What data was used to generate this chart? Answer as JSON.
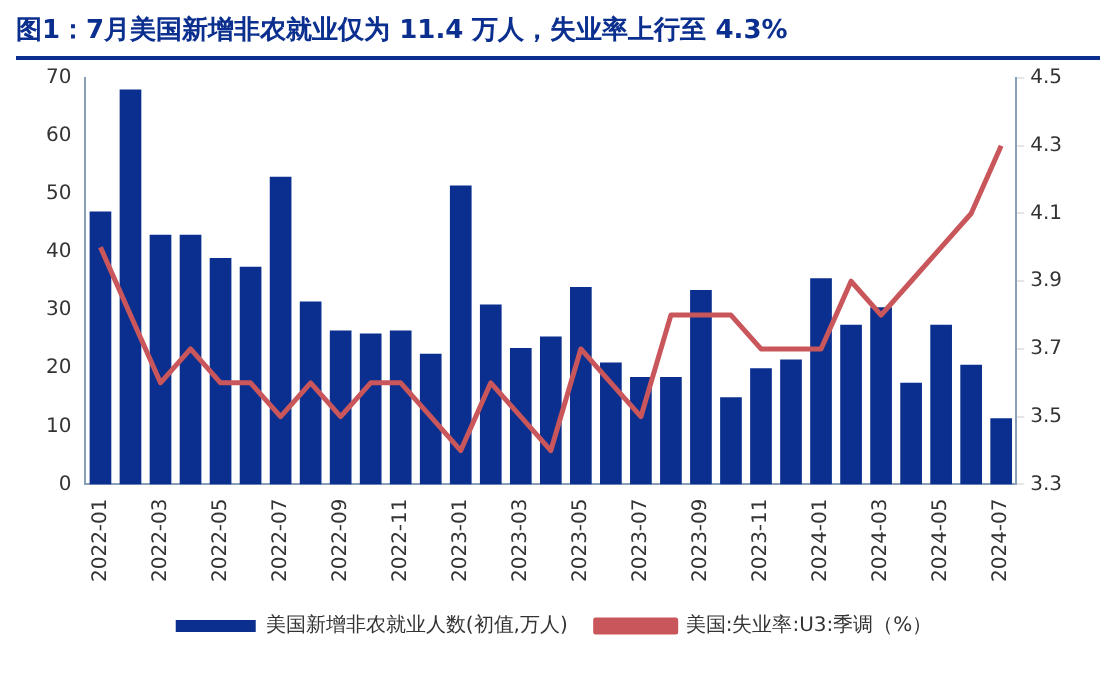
{
  "chart_data": {
    "type": "bar",
    "title": "图1：7月美国新增非农就业仅为 11.4 万人，失业率上行至 4.3%",
    "categories": [
      "2022-01",
      null,
      "2022-03",
      null,
      "2022-05",
      null,
      "2022-07",
      null,
      "2022-09",
      null,
      "2022-11",
      null,
      "2023-01",
      null,
      "2023-03",
      null,
      "2023-05",
      null,
      "2023-07",
      null,
      "2023-09",
      null,
      "2023-11",
      null,
      "2024-01",
      null,
      "2024-03",
      null,
      "2024-05",
      null,
      "2024-07"
    ],
    "series": [
      {
        "name": "美国新增非农就业人数(初值,万人)",
        "color": "#0b2f8f",
        "values": [
          47,
          68,
          43,
          43,
          39,
          37.5,
          53,
          31.5,
          26.5,
          26,
          26.5,
          22.5,
          51.5,
          31,
          23.5,
          25.5,
          34,
          21,
          18.5,
          18.5,
          33.5,
          15,
          20,
          21.5,
          35.5,
          27.5,
          30.5,
          17.5,
          27.5,
          20.6,
          11.4
        ]
      },
      {
        "name": "美国:失业率:U3:季调（%）",
        "type": "line",
        "axis": "y2",
        "color": "#c9565b",
        "values": [
          4.0,
          3.8,
          3.6,
          3.7,
          3.6,
          3.6,
          3.5,
          3.6,
          3.5,
          3.6,
          3.6,
          3.5,
          3.4,
          3.6,
          3.5,
          3.4,
          3.7,
          3.6,
          3.5,
          3.8,
          3.8,
          3.8,
          3.7,
          3.7,
          3.7,
          3.9,
          3.8,
          3.9,
          4.0,
          4.1,
          4.3
        ]
      }
    ],
    "ylim": [
      0,
      70
    ],
    "yticks": [
      0,
      10,
      20,
      30,
      40,
      50,
      60,
      70
    ],
    "y2lim": [
      3.3,
      4.5
    ],
    "y2ticks": [
      {
        "value": 3.3,
        "label": "3.3"
      },
      {
        "value": 3.5,
        "label": "3.5"
      },
      {
        "value": 3.7,
        "label": "3.7"
      },
      {
        "value": 3.9,
        "label": "3.9"
      },
      {
        "value": 4.1,
        "label": "4.1"
      },
      {
        "value": 4.3,
        "label": "4.3"
      },
      {
        "value": 4.5,
        "label": "4.5"
      }
    ],
    "grid": false,
    "legend": "bottom",
    "marker": "none",
    "line_style": "solid"
  }
}
